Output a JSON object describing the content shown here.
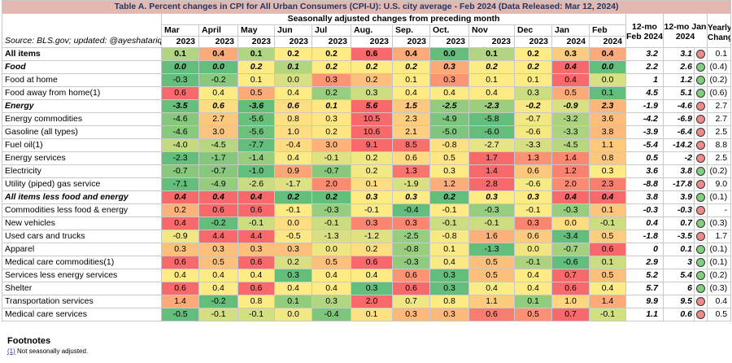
{
  "title": "Table A. Percent changes in CPI for All Urban Consumers (CPI-U): U.S. city average - Feb 2024 (Data Released: Mar 12, 2024)",
  "subtitle": "Seasonally adjusted changes from preceding month",
  "source": "Source: BLS.gov; updated: @ayeshatariq",
  "months": [
    {
      "m": "Mar",
      "y": "2023"
    },
    {
      "m": "April",
      "y": "2023"
    },
    {
      "m": "May",
      "y": "2023"
    },
    {
      "m": "Jun",
      "y": "2023"
    },
    {
      "m": "Jul",
      "y": "2023"
    },
    {
      "m": "Aug.",
      "y": "2023"
    },
    {
      "m": "Sep.",
      "y": "2023"
    },
    {
      "m": "Oct.",
      "y": "2023"
    },
    {
      "m": "Nov",
      "y": "2023"
    },
    {
      "m": "Dec",
      "y": "2023"
    },
    {
      "m": "Jan",
      "y": "2024"
    },
    {
      "m": "Feb",
      "y": "2024"
    }
  ],
  "col_12mo_feb": "12-mo Feb 2024",
  "col_12mo_jan": "12-mo Jan 2024",
  "col_yearly": "Yearly Change",
  "colors": {
    "title_bg": "#e3b8b0",
    "title_text": "#1f3864",
    "dot_red": "#f08a8a",
    "dot_green": "#7fcf7f",
    "scale_low": "#63be7b",
    "scale_mid": "#ffeb84",
    "scale_high": "#f8696b"
  },
  "rows": [
    {
      "label": "All items",
      "indent": 0,
      "bold": true,
      "italic": false,
      "vals": [
        "0.1",
        "0.4",
        "0.1",
        "0.2",
        "0.2",
        "0.6",
        "0.4",
        "0.0",
        "0.1",
        "0.2",
        "0.3",
        "0.4"
      ],
      "feb12": "3.2",
      "jan12": "3.1",
      "dot": "red",
      "yearly": "0.1"
    },
    {
      "label": "Food",
      "indent": 0,
      "bold": true,
      "italic": true,
      "vals": [
        "0.0",
        "0.0",
        "0.2",
        "0.1",
        "0.2",
        "0.2",
        "0.2",
        "0.3",
        "0.2",
        "0.2",
        "0.4",
        "0.0"
      ],
      "feb12": "2.2",
      "jan12": "2.6",
      "dot": "green",
      "yearly": "(0.4)"
    },
    {
      "label": "Food at home",
      "indent": 1,
      "bold": false,
      "italic": false,
      "vals": [
        "-0.3",
        "-0.2",
        "0.1",
        "0.0",
        "0.3",
        "0.2",
        "0.1",
        "0.3",
        "0.1",
        "0.1",
        "0.4",
        "0.0"
      ],
      "feb12": "1",
      "jan12": "1.2",
      "dot": "green",
      "yearly": "(0.2)"
    },
    {
      "label": "Food away from home(1)",
      "indent": 1,
      "bold": false,
      "italic": false,
      "vals": [
        "0.6",
        "0.4",
        "0.5",
        "0.4",
        "0.2",
        "0.3",
        "0.4",
        "0.4",
        "0.4",
        "0.3",
        "0.5",
        "0.1"
      ],
      "feb12": "4.5",
      "jan12": "5.1",
      "dot": "green",
      "yearly": "(0.6)"
    },
    {
      "label": "Energy",
      "indent": 0,
      "bold": true,
      "italic": true,
      "vals": [
        "-3.5",
        "0.6",
        "-3.6",
        "0.6",
        "0.1",
        "5.6",
        "1.5",
        "-2.5",
        "-2.3",
        "-0.2",
        "-0.9",
        "2.3"
      ],
      "feb12": "-1.9",
      "jan12": "-4.6",
      "dot": "red",
      "yearly": "2.7"
    },
    {
      "label": "Energy commodities",
      "indent": 1,
      "bold": false,
      "italic": false,
      "vals": [
        "-4.6",
        "2.7",
        "-5.6",
        "0.8",
        "0.3",
        "10.5",
        "2.3",
        "-4.9",
        "-5.8",
        "-0.7",
        "-3.2",
        "3.6"
      ],
      "feb12": "-4.2",
      "jan12": "-6.9",
      "dot": "red",
      "yearly": "2.7"
    },
    {
      "label": "Gasoline (all types)",
      "indent": 2,
      "bold": false,
      "italic": false,
      "vals": [
        "-4.6",
        "3.0",
        "-5.6",
        "1.0",
        "0.2",
        "10.6",
        "2.1",
        "-5.0",
        "-6.0",
        "-0.6",
        "-3.3",
        "3.8"
      ],
      "feb12": "-3.9",
      "jan12": "-6.4",
      "dot": "red",
      "yearly": "2.5"
    },
    {
      "label": "Fuel oil(1)",
      "indent": 2,
      "bold": false,
      "italic": false,
      "vals": [
        "-4.0",
        "-4.5",
        "-7.7",
        "-0.4",
        "3.0",
        "9.1",
        "8.5",
        "-0.8",
        "-2.7",
        "-3.3",
        "-4.5",
        "1.1"
      ],
      "feb12": "-5.4",
      "jan12": "-14.2",
      "dot": "red",
      "yearly": "8.8"
    },
    {
      "label": "Energy services",
      "indent": 1,
      "bold": false,
      "italic": false,
      "vals": [
        "-2.3",
        "-1.7",
        "-1.4",
        "0.4",
        "-0.1",
        "0.2",
        "0.6",
        "0.5",
        "1.7",
        "1.3",
        "1.4",
        "0.8"
      ],
      "feb12": "0.5",
      "jan12": "-2",
      "dot": "red",
      "yearly": "2.5"
    },
    {
      "label": "Electricity",
      "indent": 2,
      "bold": false,
      "italic": false,
      "vals": [
        "-0.7",
        "-0.7",
        "-1.0",
        "0.9",
        "-0.7",
        "0.2",
        "1.3",
        "0.3",
        "1.4",
        "0.6",
        "1.2",
        "0.3"
      ],
      "feb12": "3.6",
      "jan12": "3.8",
      "dot": "green",
      "yearly": "(0.2)"
    },
    {
      "label": "Utility (piped) gas service",
      "indent": 2,
      "bold": false,
      "italic": false,
      "vals": [
        "-7.1",
        "-4.9",
        "-2.6",
        "-1.7",
        "2.0",
        "0.1",
        "-1.9",
        "1.2",
        "2.8",
        "-0.6",
        "2.0",
        "2.3"
      ],
      "feb12": "-8.8",
      "jan12": "-17.8",
      "dot": "red",
      "yearly": "9.0"
    },
    {
      "label": "All items less food and energy",
      "indent": 0,
      "bold": true,
      "italic": true,
      "vals": [
        "0.4",
        "0.4",
        "0.4",
        "0.2",
        "0.2",
        "0.3",
        "0.3",
        "0.2",
        "0.3",
        "0.3",
        "0.4",
        "0.4"
      ],
      "feb12": "3.8",
      "jan12": "3.9",
      "dot": "green",
      "yearly": "(0.1)"
    },
    {
      "label": "Commodities less food & energy",
      "indent": 1,
      "bold": false,
      "italic": false,
      "vals": [
        "0.2",
        "0.6",
        "0.6",
        "-0.1",
        "-0.3",
        "-0.1",
        "-0.4",
        "-0.1",
        "-0.3",
        "-0.1",
        "-0.3",
        "0.1"
      ],
      "feb12": "-0.3",
      "jan12": "-0.3",
      "dot": "red",
      "yearly": "-"
    },
    {
      "label": "New vehicles",
      "indent": 2,
      "bold": false,
      "italic": false,
      "vals": [
        "0.4",
        "-0.2",
        "-0.1",
        "0.0",
        "-0.1",
        "0.3",
        "0.3",
        "-0.1",
        "-0.1",
        "0.3",
        "0.0",
        "-0.1"
      ],
      "feb12": "0.4",
      "jan12": "0.7",
      "dot": "green",
      "yearly": "(0.3)"
    },
    {
      "label": "Used cars and trucks",
      "indent": 2,
      "bold": false,
      "italic": false,
      "vals": [
        "-0.9",
        "4.4",
        "4.4",
        "-0.5",
        "-1.3",
        "-1.2",
        "-2.5",
        "-0.8",
        "1.6",
        "0.6",
        "-3.4",
        "0.5"
      ],
      "feb12": "-1.8",
      "jan12": "-3.5",
      "dot": "red",
      "yearly": "1.7"
    },
    {
      "label": "Apparel",
      "indent": 2,
      "bold": false,
      "italic": false,
      "vals": [
        "0.3",
        "0.3",
        "0.3",
        "0.3",
        "0.0",
        "0.2",
        "-0.8",
        "0.1",
        "-1.3",
        "0.0",
        "-0.7",
        "0.6"
      ],
      "feb12": "0",
      "jan12": "0.1",
      "dot": "green",
      "yearly": "(0.1)"
    },
    {
      "label": "Medical care commodities(1)",
      "indent": 2,
      "bold": false,
      "italic": false,
      "vals": [
        "0.6",
        "0.5",
        "0.6",
        "0.2",
        "0.5",
        "0.6",
        "-0.3",
        "0.4",
        "0.5",
        "-0.1",
        "-0.6",
        "0.1"
      ],
      "feb12": "2.9",
      "jan12": "3",
      "dot": "green",
      "yearly": "(0.1)"
    },
    {
      "label": "Services less energy services",
      "indent": 0,
      "bold": false,
      "italic": false,
      "vals": [
        "0.4",
        "0.4",
        "0.4",
        "0.3",
        "0.4",
        "0.4",
        "0.6",
        "0.3",
        "0.5",
        "0.4",
        "0.7",
        "0.5"
      ],
      "feb12": "5.2",
      "jan12": "5.4",
      "dot": "green",
      "yearly": "(0.2)"
    },
    {
      "label": "Shelter",
      "indent": 1,
      "bold": false,
      "italic": false,
      "vals": [
        "0.6",
        "0.4",
        "0.6",
        "0.4",
        "0.4",
        "0.3",
        "0.6",
        "0.3",
        "0.4",
        "0.4",
        "0.6",
        "0.4"
      ],
      "feb12": "5.7",
      "jan12": "6",
      "dot": "green",
      "yearly": "(0.3)"
    },
    {
      "label": "Transportation services",
      "indent": 1,
      "bold": false,
      "italic": false,
      "vals": [
        "1.4",
        "-0.2",
        "0.8",
        "0.1",
        "0.3",
        "2.0",
        "0.7",
        "0.8",
        "1.1",
        "0.1",
        "1.0",
        "1.4"
      ],
      "feb12": "9.9",
      "jan12": "9.5",
      "dot": "red",
      "yearly": "0.4"
    },
    {
      "label": "Medical care services",
      "indent": 1,
      "bold": false,
      "italic": false,
      "vals": [
        "-0.5",
        "-0.1",
        "-0.1",
        "0.0",
        "-0.4",
        "0.1",
        "0.3",
        "0.3",
        "0.6",
        "0.5",
        "0.7",
        "-0.1"
      ],
      "feb12": "1.1",
      "jan12": "0.6",
      "dot": "red",
      "yearly": "0.5"
    }
  ],
  "footnotes_title": "Footnotes",
  "footnote_ref": "(1)",
  "footnote_text": " Not seasonally adjusted."
}
